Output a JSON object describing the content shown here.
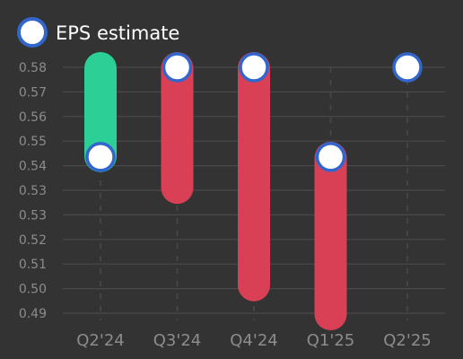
{
  "chart_data": {
    "type": "bar",
    "subtype": "floating-range-with-markers",
    "categories": [
      "Q2'24",
      "Q3'24",
      "Q4'24",
      "Q1'25",
      "Q2'25"
    ],
    "series": [
      {
        "name": "EPS estimate",
        "values": [
          0.546,
          0.58,
          0.58,
          0.546,
          0.58
        ]
      }
    ],
    "actual": [
      0.58,
      0.534,
      0.497,
      0.486,
      null
    ],
    "ylim": [
      0.4867,
      0.58
    ],
    "yticks": [
      "0.49",
      "0.50",
      "0.51",
      "0.52",
      "0.53",
      "0.53",
      "0.54",
      "0.55",
      "0.56",
      "0.57",
      "0.58"
    ],
    "grid": true,
    "legend": {
      "position": "top-left",
      "label": "EPS estimate"
    },
    "colors": {
      "beat": "#2ccf96",
      "miss": "#d94056",
      "marker_fill": "#ffffff",
      "marker_stroke": "#3366cc",
      "grid": "#4a4a4a",
      "background": "#333333"
    }
  }
}
